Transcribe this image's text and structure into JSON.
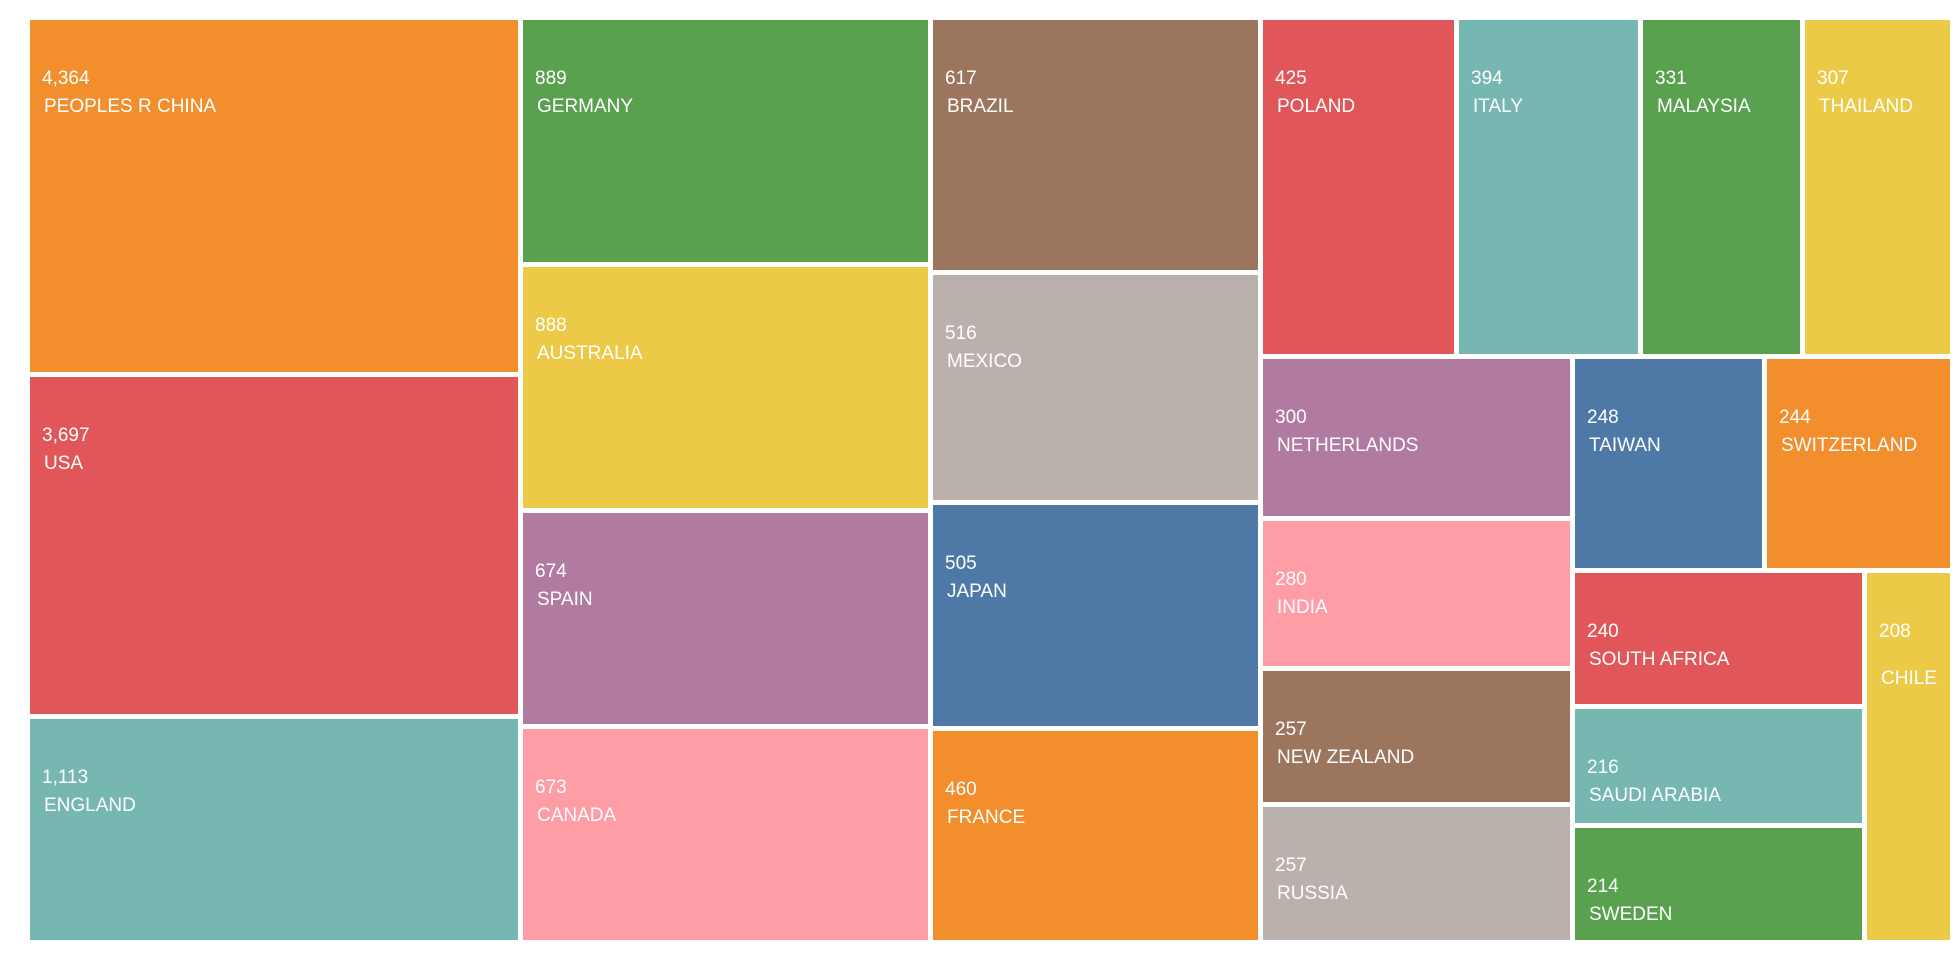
{
  "chart_data": {
    "type": "treemap",
    "title": "",
    "items": [
      {
        "label": "PEOPLES R CHINA",
        "value": 4364,
        "display": "4,364",
        "color": "#F28E2B"
      },
      {
        "label": "USA",
        "value": 3697,
        "display": "3,697",
        "color": "#E15759"
      },
      {
        "label": "ENGLAND",
        "value": 1113,
        "display": "1,113",
        "color": "#76B7B2"
      },
      {
        "label": "GERMANY",
        "value": 889,
        "display": "889",
        "color": "#59A14F"
      },
      {
        "label": "AUSTRALIA",
        "value": 888,
        "display": "888",
        "color": "#EDC948"
      },
      {
        "label": "SPAIN",
        "value": 674,
        "display": "674",
        "color": "#B07AA1"
      },
      {
        "label": "CANADA",
        "value": 673,
        "display": "673",
        "color": "#FF9DA7"
      },
      {
        "label": "BRAZIL",
        "value": 617,
        "display": "617",
        "color": "#9C755F"
      },
      {
        "label": "MEXICO",
        "value": 516,
        "display": "516",
        "color": "#BAB0AC"
      },
      {
        "label": "JAPAN",
        "value": 505,
        "display": "505",
        "color": "#4E79A7"
      },
      {
        "label": "FRANCE",
        "value": 460,
        "display": "460",
        "color": "#F28E2B"
      },
      {
        "label": "POLAND",
        "value": 425,
        "display": "425",
        "color": "#E15759"
      },
      {
        "label": "ITALY",
        "value": 394,
        "display": "394",
        "color": "#76B7B2"
      },
      {
        "label": "MALAYSIA",
        "value": 331,
        "display": "331",
        "color": "#59A14F"
      },
      {
        "label": "THAILAND",
        "value": 307,
        "display": "307",
        "color": "#EDC948"
      },
      {
        "label": "NETHERLANDS",
        "value": 300,
        "display": "300",
        "color": "#B07AA1"
      },
      {
        "label": "INDIA",
        "value": 280,
        "display": "280",
        "color": "#FF9DA7"
      },
      {
        "label": "NEW ZEALAND",
        "value": 257,
        "display": "257",
        "color": "#9C755F"
      },
      {
        "label": "RUSSIA",
        "value": 257,
        "display": "257",
        "color": "#BAB0AC"
      },
      {
        "label": "TAIWAN",
        "value": 248,
        "display": "248",
        "color": "#4E79A7"
      },
      {
        "label": "SWITZERLAND",
        "value": 244,
        "display": "244",
        "color": "#F28E2B"
      },
      {
        "label": "SOUTH AFRICA",
        "value": 240,
        "display": "240",
        "color": "#E15759"
      },
      {
        "label": "SAUDI ARABIA",
        "value": 216,
        "display": "216",
        "color": "#76B7B2"
      },
      {
        "label": "SWEDEN",
        "value": 214,
        "display": "214",
        "color": "#59A14F"
      },
      {
        "label": "CHILE",
        "value": 208,
        "display": "208",
        "color": "#EDC948"
      }
    ]
  }
}
